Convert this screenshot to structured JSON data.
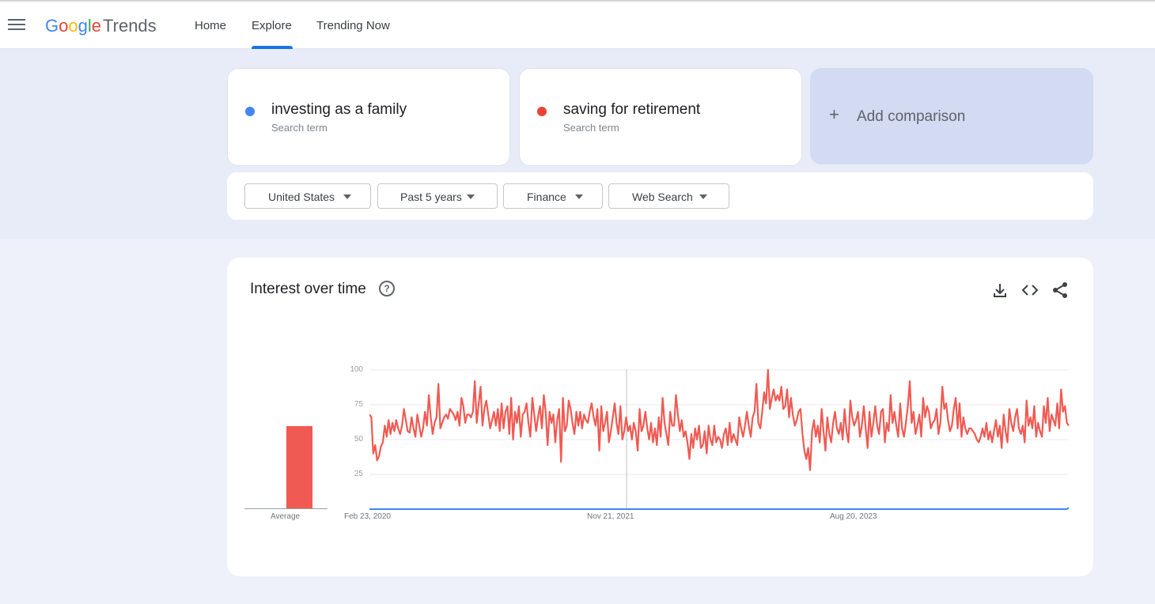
{
  "header": {
    "logo_google": [
      "G",
      "o",
      "o",
      "g",
      "l",
      "e"
    ],
    "logo_trends": "Trends",
    "nav": [
      {
        "label": "Home"
      },
      {
        "label": "Explore",
        "active": true
      },
      {
        "label": "Trending Now"
      }
    ]
  },
  "terms": [
    {
      "label": "investing as a family",
      "sub": "Search term",
      "color": "#4285f4"
    },
    {
      "label": "saving for retirement",
      "sub": "Search term",
      "color": "#ea4335"
    }
  ],
  "add_comparison": {
    "label": "Add comparison"
  },
  "filters": [
    {
      "label": "United States"
    },
    {
      "label": "Past 5 years"
    },
    {
      "label": "Finance"
    },
    {
      "label": "Web Search"
    }
  ],
  "interest": {
    "title": "Interest over time",
    "avg_label": "Average",
    "icons": [
      "download-icon",
      "embed-code-icon",
      "share-icon"
    ]
  },
  "chart_data": {
    "type": "line",
    "title": "Interest over time",
    "ylim": [
      0,
      100
    ],
    "yticks": [
      100,
      75,
      50,
      25
    ],
    "xtick_labels": [
      "Feb 23, 2020",
      "Nov 21, 2021",
      "Aug 20, 2023"
    ],
    "x_range": [
      "Feb 23, 2020",
      "Feb 2025"
    ],
    "grid": true,
    "averages": [
      {
        "name": "investing as a family",
        "value": 0
      },
      {
        "name": "saving for retirement",
        "value": 60
      }
    ],
    "series": [
      {
        "name": "saving for retirement",
        "color": "#f05a52",
        "values": [
          68,
          66,
          40,
          46,
          35,
          38,
          45,
          48,
          60,
          52,
          64,
          54,
          62,
          56,
          64,
          58,
          54,
          60,
          72,
          64,
          56,
          55,
          66,
          58,
          52,
          68,
          60,
          52,
          58,
          70,
          60,
          82,
          66,
          54,
          62,
          66,
          90,
          58,
          62,
          66,
          68,
          65,
          72,
          70,
          68,
          64,
          70,
          60,
          80,
          74,
          62,
          68,
          68,
          66,
          70,
          92,
          62,
          75,
          88,
          60,
          72,
          78,
          68,
          58,
          64,
          70,
          60,
          72,
          56,
          76,
          58,
          70,
          74,
          54,
          80,
          50,
          70,
          62,
          74,
          52,
          68,
          70,
          76,
          62,
          52,
          80,
          68,
          56,
          66,
          74,
          58,
          82,
          70,
          46,
          70,
          62,
          68,
          48,
          64,
          72,
          34,
          80,
          56,
          60,
          78,
          72,
          62,
          54,
          70,
          60,
          70,
          58,
          68,
          64,
          62,
          70,
          76,
          66,
          60,
          72,
          42,
          74,
          56,
          62,
          70,
          48,
          56,
          66,
          76,
          62,
          54,
          74,
          50,
          56,
          66,
          56,
          60,
          50,
          62,
          56,
          42,
          72,
          56,
          60,
          70,
          58,
          50,
          62,
          48,
          58,
          46,
          66,
          52,
          80,
          62,
          54,
          46,
          70,
          60,
          60,
          82,
          68,
          56,
          64,
          52,
          56,
          48,
          36,
          54,
          44,
          58,
          50,
          60,
          44,
          46,
          56,
          40,
          60,
          50,
          46,
          60,
          48,
          52,
          50,
          44,
          54,
          58,
          46,
          62,
          48,
          54,
          50,
          46,
          66,
          58,
          52,
          60,
          70,
          60,
          52,
          66,
          70,
          90,
          62,
          58,
          70,
          84,
          76,
          100,
          72,
          80,
          86,
          78,
          82,
          78,
          88,
          72,
          74,
          86,
          66,
          80,
          68,
          60,
          64,
          70,
          72,
          54,
          42,
          36,
          44,
          28,
          56,
          64,
          52,
          60,
          48,
          72,
          56,
          42,
          66,
          54,
          48,
          62,
          70,
          58,
          54,
          62,
          50,
          72,
          56,
          48,
          78,
          66,
          60,
          64,
          70,
          52,
          60,
          74,
          58,
          44,
          70,
          52,
          62,
          74,
          60,
          54,
          70,
          72,
          48,
          62,
          56,
          82,
          62,
          70,
          60,
          52,
          76,
          58,
          52,
          62,
          74,
          92,
          62,
          70,
          54,
          60,
          68,
          52,
          80,
          66,
          74,
          70,
          58,
          62,
          64,
          72,
          54,
          62,
          88,
          72,
          76,
          64,
          56,
          60,
          72,
          80,
          58,
          76,
          52,
          66,
          58,
          54,
          58,
          58,
          56,
          54,
          50,
          48,
          52,
          58,
          52,
          62,
          50,
          56,
          48,
          56,
          64,
          52,
          60,
          44,
          68,
          56,
          48,
          72,
          62,
          56,
          66,
          72,
          58,
          54,
          60,
          48,
          78,
          60,
          66,
          58,
          74,
          52,
          62,
          56,
          52,
          74,
          62,
          80,
          56,
          68,
          64,
          60,
          76,
          58,
          86,
          70,
          74,
          62,
          60
        ]
      },
      {
        "name": "investing as a family",
        "color": "#4285f4",
        "values": [
          0,
          0,
          0,
          0,
          0,
          0,
          0,
          0,
          0,
          0,
          0,
          0,
          0,
          0,
          0,
          0,
          0,
          0,
          0,
          0,
          0,
          0,
          0,
          0,
          0,
          0,
          0,
          0,
          0,
          0,
          0,
          0,
          0,
          0,
          0,
          0,
          0,
          0,
          0,
          0,
          0,
          0,
          0,
          0,
          0,
          0,
          0,
          0,
          0,
          0,
          0,
          0,
          0,
          0,
          0,
          0,
          0,
          0,
          0,
          0,
          0,
          0,
          0,
          0,
          0,
          0,
          0,
          0,
          0,
          0,
          0,
          0,
          0,
          0,
          0,
          0,
          0,
          0,
          0,
          0,
          0,
          0,
          0,
          0,
          0,
          0,
          0,
          0,
          0,
          0,
          0,
          0,
          0,
          0,
          0,
          0,
          0,
          0,
          0,
          0,
          0,
          0,
          0,
          0,
          0,
          0,
          0,
          0,
          0,
          0,
          0,
          0,
          0,
          0,
          0,
          0,
          0,
          0,
          0,
          0,
          0,
          0,
          0,
          0,
          0,
          0,
          0,
          0,
          0,
          0,
          0,
          0,
          0,
          0,
          0,
          0,
          0,
          0,
          0,
          0,
          0,
          0,
          0,
          0,
          0,
          0,
          0,
          0,
          0,
          0,
          0,
          0,
          0,
          0,
          0,
          0,
          0,
          0,
          0,
          0,
          0,
          0,
          0,
          0,
          0,
          0,
          0,
          0,
          0,
          0,
          0,
          0,
          0,
          0,
          0,
          0,
          0,
          0,
          0,
          0,
          0,
          0,
          0,
          0,
          0,
          0,
          0,
          0,
          0,
          0,
          0,
          0,
          0,
          0,
          0,
          0,
          0,
          0,
          0,
          0,
          0,
          0,
          0,
          0,
          0,
          0,
          0,
          0,
          0,
          0,
          0,
          0,
          0,
          0,
          0,
          0,
          0,
          0,
          0,
          0,
          0,
          0,
          0,
          0,
          0,
          0,
          0,
          0,
          0,
          0,
          0,
          0,
          0,
          0,
          0,
          0,
          0,
          0,
          0,
          0,
          0,
          0,
          0,
          0,
          0,
          0,
          0,
          0,
          0,
          0,
          0,
          0,
          0,
          0,
          0,
          0,
          0,
          0,
          0,
          0,
          0,
          0,
          0,
          0,
          0,
          0,
          0,
          0,
          0,
          0,
          0,
          0,
          0,
          0,
          0,
          0,
          0,
          0,
          0,
          0,
          0,
          0,
          0,
          0,
          0,
          0,
          0,
          0,
          0,
          0,
          0,
          0,
          0,
          0,
          0,
          0,
          0,
          0,
          0,
          0,
          0,
          0,
          0,
          0,
          0,
          0,
          0,
          0,
          0,
          0,
          0,
          0,
          0,
          0,
          0,
          0,
          0,
          0,
          0,
          0,
          0,
          0,
          0,
          0,
          0,
          0,
          0,
          0,
          0,
          0,
          0,
          0,
          0,
          0,
          0,
          0,
          0,
          0,
          0,
          0,
          0,
          0,
          0,
          0,
          0,
          0,
          0,
          0,
          0,
          0,
          0,
          0,
          0,
          0,
          0,
          0,
          0,
          0,
          0,
          0,
          0,
          0,
          0,
          0,
          0,
          0,
          0,
          1
        ]
      }
    ]
  }
}
